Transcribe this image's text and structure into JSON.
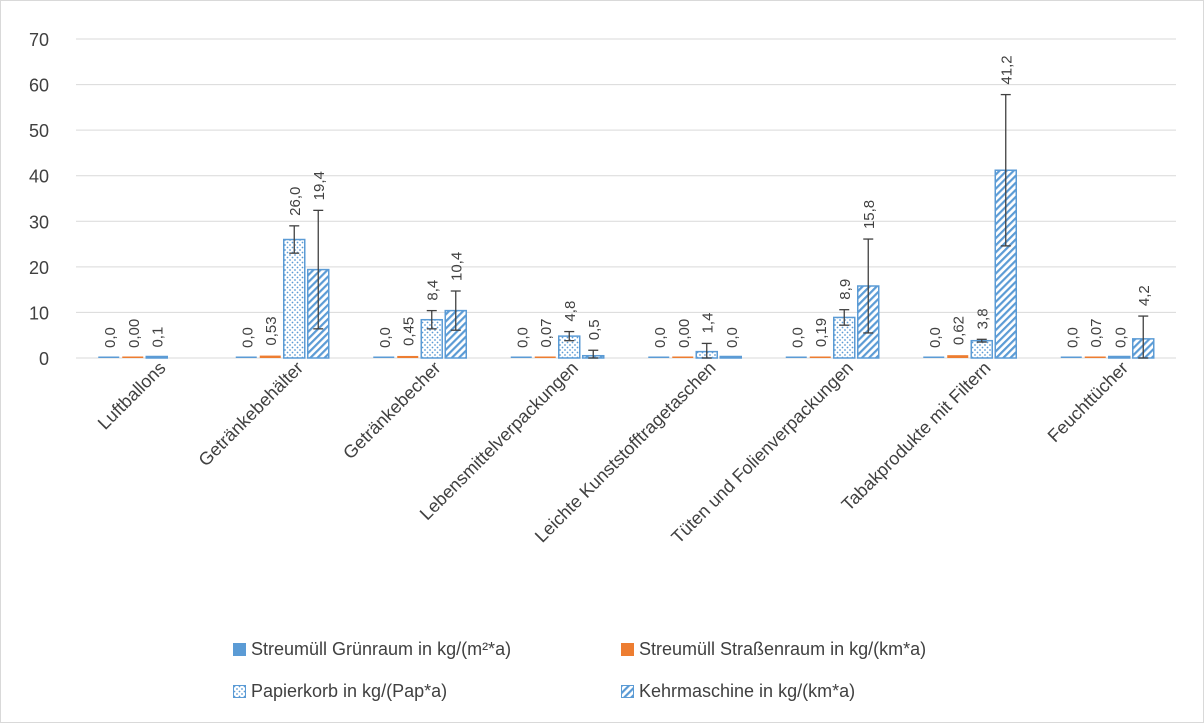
{
  "chart_data": {
    "type": "bar",
    "categories": [
      "Luftballons",
      "Getränkebehälter",
      "Getränkebecher",
      "Lebensmittelverpackungen",
      "Leichte Kunststofftragetaschen",
      "Tüten und Folienverpackungen",
      "Tabakprodukte mit Filtern",
      "Feuchttücher"
    ],
    "yticks": [
      "0",
      "10",
      "20",
      "30",
      "40",
      "50",
      "60",
      "70"
    ],
    "ylim": [
      0,
      70
    ],
    "grid": true,
    "legend_position": "bottom",
    "series": [
      {
        "name": "Streumüll Grünraum in kg/(m²*a)",
        "style": "solid",
        "color": "#5b9bd5",
        "values": [
          0.0,
          0.0,
          0.0,
          0.0,
          0.0,
          0.0,
          0.0,
          0.0
        ],
        "labels": [
          "0,0",
          "0,0",
          "0,0",
          "0,0",
          "0,0",
          "0,0",
          "0,0",
          "0,0"
        ]
      },
      {
        "name": "Streumüll Straßenraum in kg/(km*a)",
        "style": "solid",
        "color": "#ed7d31",
        "values": [
          0.0,
          0.53,
          0.45,
          0.07,
          0.0,
          0.19,
          0.62,
          0.07
        ],
        "labels": [
          "0,00",
          "0,53",
          "0,45",
          "0,07",
          "0,00",
          "0,19",
          "0,62",
          "0,07"
        ]
      },
      {
        "name": "Papierkorb in kg/(Pap*a)",
        "style": "dotted",
        "color": "#5b9bd5",
        "values": [
          0.1,
          26.0,
          8.4,
          4.8,
          1.4,
          8.9,
          3.8,
          0.0
        ],
        "labels": [
          "0,1",
          "26,0",
          "8,4",
          "4,8",
          "1,4",
          "8,9",
          "3,8",
          "0,0"
        ],
        "errors": [
          null,
          3.0,
          2.0,
          1.0,
          1.8,
          1.7,
          0.3,
          null
        ]
      },
      {
        "name": "Kehrmaschine in kg/(km*a)",
        "style": "hatched",
        "color": "#5b9bd5",
        "values": [
          null,
          19.4,
          10.4,
          0.5,
          0.0,
          15.8,
          41.2,
          4.2
        ],
        "labels": [
          "",
          "19,4",
          "10,4",
          "0,5",
          "0,0",
          "15,8",
          "41,2",
          "4,2"
        ],
        "errors": [
          null,
          13.0,
          4.3,
          1.2,
          null,
          10.3,
          16.6,
          5.0
        ]
      }
    ]
  }
}
